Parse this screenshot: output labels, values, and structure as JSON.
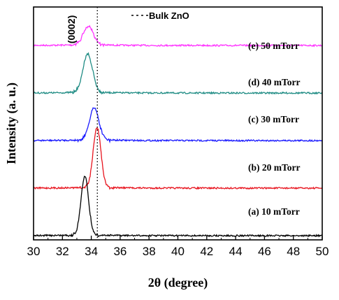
{
  "chart_data": {
    "type": "line",
    "xlabel": "2θ (degree)",
    "ylabel": "Intensity (a. u.)",
    "xlim": [
      30,
      50
    ],
    "xticks": [
      30,
      32,
      34,
      36,
      38,
      40,
      42,
      44,
      46,
      48,
      50
    ],
    "yticks_shown": false,
    "peak_annotation": "(0002)",
    "reference_line": {
      "label": "Bulk ZnO",
      "x": 34.42,
      "style": "dotted"
    },
    "series": [
      {
        "name": "(e) 50 mTorr",
        "color": "#ff33ff",
        "peak_x": 33.8,
        "peak_height": 0.26,
        "width": 0.35,
        "baseline_offset": 4
      },
      {
        "name": "(d) 40 mTorr",
        "color": "#1f8c84",
        "peak_x": 33.75,
        "peak_height": 0.54,
        "width": 0.33,
        "baseline_offset": 3
      },
      {
        "name": "(c) 30 mTorr",
        "color": "#1a1aff",
        "peak_x": 34.2,
        "peak_height": 0.46,
        "width": 0.32,
        "baseline_offset": 2
      },
      {
        "name": "(b) 20 mTorr",
        "color": "#e8141e",
        "peak_x": 34.4,
        "peak_height": 0.85,
        "width": 0.27,
        "baseline_offset": 1
      },
      {
        "name": "(a) 10 mTorr",
        "color": "#000000",
        "peak_x": 33.55,
        "peak_height": 0.84,
        "width": 0.26,
        "baseline_offset": 0
      }
    ]
  }
}
